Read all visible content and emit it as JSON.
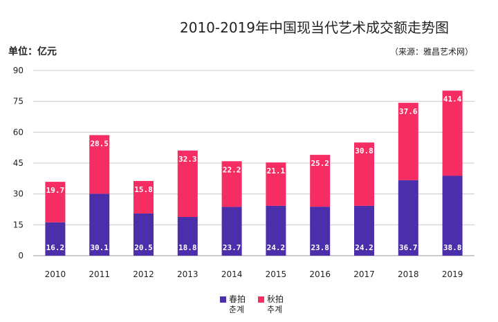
{
  "title": "2010-2019年中国现当代艺术成交额走势图",
  "unit": "单位：亿元",
  "source": "（来源：雅昌艺术网）",
  "chart_data": {
    "type": "bar",
    "stacked": true,
    "categories": [
      "2010",
      "2011",
      "2012",
      "2013",
      "2014",
      "2015",
      "2016",
      "2017",
      "2018",
      "2019"
    ],
    "series": [
      {
        "name": "春拍 춘계",
        "color": "#4b2faa",
        "values": [
          16.2,
          30.1,
          20.5,
          18.8,
          23.7,
          24.2,
          23.8,
          24.2,
          36.7,
          38.8
        ]
      },
      {
        "name": "秋拍 추계",
        "color": "#f52d62",
        "values": [
          19.7,
          28.5,
          15.8,
          32.3,
          22.2,
          21.1,
          25.2,
          30.8,
          37.6,
          41.4
        ]
      }
    ],
    "ylim": [
      0,
      90
    ],
    "yticks": [
      0,
      15,
      30,
      45,
      60,
      75,
      90
    ],
    "grid": true,
    "legend_position": "bottom"
  },
  "legend": [
    {
      "line1": "春拍",
      "line2": "춘계",
      "color": "#4b2faa"
    },
    {
      "line1": "秋拍",
      "line2": "추계",
      "color": "#f52d62"
    }
  ]
}
